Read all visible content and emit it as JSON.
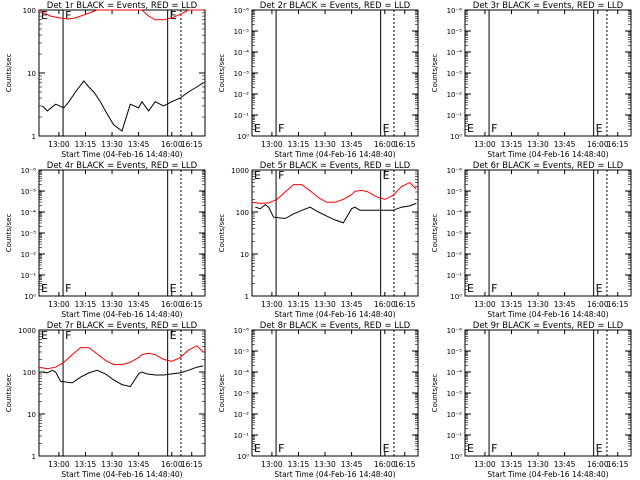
{
  "figure": {
    "background": "#ffffff"
  },
  "colors": {
    "events": "#000000",
    "lld": "#ff0000",
    "axes": "#000000"
  },
  "shared": {
    "xlabel": "Start Time (04-Feb-16 14:48:40)",
    "ylabel": "Counts/sec",
    "x_ticks": [
      "13:00",
      "13:15",
      "13:30",
      "13:45",
      "16:00",
      "16:15"
    ],
    "markers": {
      "e": "E",
      "f": "F"
    }
  },
  "chart_data": [
    {
      "type": "line",
      "title": "Det 1r BLACK = Events, RED = LLD",
      "ylabel": "Counts/sec",
      "xlabel": "Start Time (04-Feb-16 14:48:40)",
      "yscale": "log",
      "ytick_labels": [
        "1",
        "10",
        "100"
      ],
      "ylim_decades": [
        0,
        2
      ],
      "has_data": true,
      "series": [
        {
          "name": "Events",
          "color": "#000000",
          "x": [
            0.02,
            0.05,
            0.1,
            0.15,
            0.18,
            0.22,
            0.27,
            0.3,
            0.33,
            0.37,
            0.4,
            0.45,
            0.5,
            0.55,
            0.6,
            0.62,
            0.66,
            0.7,
            0.75,
            0.8,
            0.85,
            0.9,
            0.95,
            0.99
          ],
          "y": [
            3,
            2.5,
            3.2,
            2.8,
            3.5,
            5,
            7.5,
            6,
            5,
            3.5,
            2.5,
            1.5,
            1.2,
            3.2,
            2.8,
            3.5,
            2.5,
            3.5,
            3,
            3.5,
            4,
            5,
            6,
            7
          ]
        },
        {
          "name": "LLD",
          "color": "#ff0000",
          "x": [
            0.0,
            0.03,
            0.07,
            0.12,
            0.18,
            0.22,
            0.28,
            0.35,
            0.45,
            0.5,
            0.55,
            0.6,
            0.62,
            0.66,
            0.7,
            0.75,
            0.8,
            0.85,
            0.9,
            0.95,
            0.99
          ],
          "y": [
            100,
            90,
            80,
            75,
            72,
            75,
            85,
            100,
            100,
            100,
            100,
            100,
            100,
            80,
            70,
            70,
            75,
            85,
            100,
            100,
            100
          ]
        }
      ]
    },
    {
      "type": "line",
      "title": "Det 2r BLACK = Events, RED = LLD",
      "ylabel": "Counts/sec",
      "xlabel": "Start Time (04-Feb-16 14:48:40)",
      "yscale": "log",
      "ytick_labels": [
        "10⁰",
        "10⁻¹",
        "10⁻²",
        "10⁻³",
        "10⁻⁴",
        "10⁻⁵",
        "10⁻⁶"
      ],
      "has_data": false,
      "series": []
    },
    {
      "type": "line",
      "title": "Det 3r BLACK = Events, RED = LLD",
      "ylabel": "Counts/sec",
      "xlabel": "Start Time (04-Feb-16 14:48:40)",
      "yscale": "log",
      "ytick_labels": [
        "10⁰",
        "10⁻¹",
        "10⁻²",
        "10⁻³",
        "10⁻⁴",
        "10⁻⁵",
        "10⁻⁶"
      ],
      "has_data": false,
      "series": []
    },
    {
      "type": "line",
      "title": "Det 4r BLACK = Events, RED = LLD",
      "ylabel": "Counts/sec",
      "xlabel": "Start Time (04-Feb-16 14:48:40)",
      "yscale": "log",
      "ytick_labels": [
        "10⁰",
        "10⁻¹",
        "10⁻²",
        "10⁻³",
        "10⁻⁴",
        "10⁻⁵",
        "10⁻⁶"
      ],
      "has_data": false,
      "series": []
    },
    {
      "type": "line",
      "title": "Det 5r BLACK = Events, RED = LLD",
      "ylabel": "Counts/sec",
      "xlabel": "Start Time (04-Feb-16 14:48:40)",
      "yscale": "log",
      "ytick_labels": [
        "1",
        "10",
        "100",
        "1000"
      ],
      "ylim_decades": [
        0,
        3
      ],
      "has_data": true,
      "series": [
        {
          "name": "Events",
          "color": "#000000",
          "x": [
            0.02,
            0.05,
            0.08,
            0.1,
            0.13,
            0.2,
            0.25,
            0.3,
            0.35,
            0.4,
            0.45,
            0.5,
            0.55,
            0.6,
            0.62,
            0.65,
            0.7,
            0.75,
            0.8,
            0.85,
            0.9,
            0.95,
            0.99
          ],
          "y": [
            130,
            120,
            150,
            130,
            75,
            70,
            90,
            110,
            130,
            100,
            80,
            65,
            55,
            120,
            130,
            110,
            110,
            110,
            110,
            110,
            130,
            140,
            160
          ]
        },
        {
          "name": "LLD",
          "color": "#ff0000",
          "x": [
            0.0,
            0.05,
            0.1,
            0.15,
            0.2,
            0.25,
            0.3,
            0.35,
            0.4,
            0.45,
            0.5,
            0.55,
            0.6,
            0.62,
            0.66,
            0.7,
            0.75,
            0.8,
            0.85,
            0.9,
            0.95,
            0.99
          ],
          "y": [
            170,
            160,
            165,
            200,
            300,
            450,
            450,
            320,
            220,
            170,
            170,
            200,
            260,
            310,
            330,
            300,
            230,
            200,
            250,
            400,
            500,
            350
          ]
        }
      ]
    },
    {
      "type": "line",
      "title": "Det 6r BLACK = Events, RED = LLD",
      "ylabel": "Counts/sec",
      "xlabel": "Start Time (04-Feb-16 14:48:40)",
      "yscale": "log",
      "ytick_labels": [
        "10⁰",
        "10⁻¹",
        "10⁻²",
        "10⁻³",
        "10⁻⁴",
        "10⁻⁵",
        "10⁻⁶"
      ],
      "has_data": false,
      "series": []
    },
    {
      "type": "line",
      "title": "Det 7r BLACK = Events, RED = LLD",
      "ylabel": "Counts/sec",
      "xlabel": "Start Time (04-Feb-16 14:48:40)",
      "yscale": "log",
      "ytick_labels": [
        "1",
        "10",
        "100",
        "1000"
      ],
      "ylim_decades": [
        0,
        3
      ],
      "has_data": true,
      "series": [
        {
          "name": "Events",
          "color": "#000000",
          "x": [
            0.02,
            0.05,
            0.08,
            0.1,
            0.13,
            0.2,
            0.25,
            0.3,
            0.35,
            0.4,
            0.45,
            0.5,
            0.55,
            0.6,
            0.62,
            0.65,
            0.7,
            0.75,
            0.8,
            0.85,
            0.9,
            0.95,
            0.99
          ],
          "y": [
            100,
            95,
            110,
            100,
            60,
            55,
            75,
            95,
            110,
            90,
            65,
            50,
            45,
            90,
            100,
            90,
            85,
            85,
            90,
            95,
            110,
            130,
            140
          ]
        },
        {
          "name": "LLD",
          "color": "#ff0000",
          "x": [
            0.0,
            0.05,
            0.1,
            0.15,
            0.2,
            0.25,
            0.3,
            0.35,
            0.4,
            0.45,
            0.5,
            0.55,
            0.6,
            0.62,
            0.66,
            0.7,
            0.75,
            0.8,
            0.85,
            0.9,
            0.95,
            0.99
          ],
          "y": [
            130,
            120,
            130,
            170,
            260,
            380,
            380,
            270,
            190,
            150,
            150,
            170,
            220,
            260,
            280,
            260,
            200,
            180,
            220,
            330,
            420,
            300
          ]
        }
      ]
    },
    {
      "type": "line",
      "title": "Det 8r BLACK = Events, RED = LLD",
      "ylabel": "Counts/sec",
      "xlabel": "Start Time (04-Feb-16 14:48:40)",
      "yscale": "log",
      "ytick_labels": [
        "10⁰",
        "10⁻¹",
        "10⁻²",
        "10⁻³",
        "10⁻⁴",
        "10⁻⁵",
        "10⁻⁶"
      ],
      "has_data": false,
      "series": []
    },
    {
      "type": "line",
      "title": "Det 9r BLACK = Events, RED = LLD",
      "ylabel": "Counts/sec",
      "xlabel": "Start Time (04-Feb-16 14:48:40)",
      "yscale": "log",
      "ytick_labels": [
        "10⁰",
        "10⁻¹",
        "10⁻²",
        "10⁻³",
        "10⁻⁴",
        "10⁻⁵",
        "10⁻⁶"
      ],
      "has_data": false,
      "series": []
    }
  ]
}
